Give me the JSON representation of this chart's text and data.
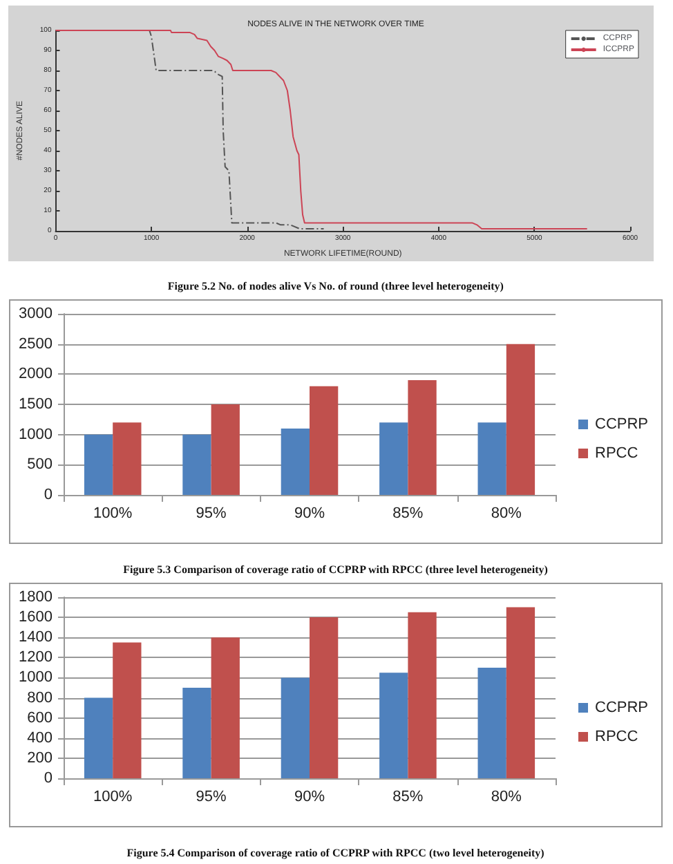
{
  "chart_data": [
    {
      "type": "line",
      "title": "NODES ALIVE IN THE NETWORK OVER TIME",
      "xlabel": "NETWORK LIFETIME(ROUND)",
      "ylabel": "#NODES ALIVE",
      "annotations": [
        "Figure 5.2 No. of nodes alive Vs No. of round (three level heterogeneity)"
      ],
      "xlim": [
        0,
        6000
      ],
      "xticks": [
        0,
        1000,
        2000,
        3000,
        4000,
        5000,
        6000
      ],
      "ylim": [
        0,
        100
      ],
      "yticks": [
        0,
        10,
        20,
        30,
        40,
        50,
        60,
        70,
        80,
        90,
        100
      ],
      "grid": false,
      "legend": "top right",
      "marker": "none",
      "series": [
        {
          "name": "CCPRP",
          "color": "#555555",
          "line_style": "dashed",
          "x": [
            0,
            980,
            1000,
            1050,
            1650,
            1700,
            1740,
            1750,
            1770,
            1810,
            1840,
            2300,
            2350,
            2450,
            2550,
            2800
          ],
          "values": [
            100,
            100,
            97,
            80,
            80,
            78,
            77,
            50,
            32,
            30,
            4,
            4,
            3,
            3,
            1,
            1
          ]
        },
        {
          "name": "ICCPRP",
          "color": "#cc4455",
          "line_style": "solid",
          "x": [
            0,
            1200,
            1210,
            1400,
            1450,
            1480,
            1580,
            1620,
            1660,
            1700,
            1750,
            1790,
            1830,
            1850,
            2250,
            2300,
            2340,
            2380,
            2420,
            2450,
            2480,
            2520,
            2540,
            2560,
            2580,
            2600,
            4350,
            4400,
            4450,
            5550
          ],
          "values": [
            100,
            100,
            99,
            99,
            98,
            96,
            95,
            92,
            90,
            87,
            86,
            85,
            83,
            80,
            80,
            79,
            77,
            75,
            70,
            60,
            47,
            40,
            38,
            20,
            8,
            4,
            4,
            3,
            1,
            1
          ]
        }
      ]
    },
    {
      "type": "bar",
      "annotations": [
        "Figure 5.3 Comparison of coverage ratio of CCPRP with RPCC (three level heterogeneity)"
      ],
      "categories": [
        "100%",
        "95%",
        "90%",
        "85%",
        "80%"
      ],
      "ylim": [
        0,
        3000
      ],
      "yticks": [
        0,
        500,
        1000,
        1500,
        2000,
        2500,
        3000
      ],
      "grid": "y",
      "legend": "right",
      "series": [
        {
          "name": "CCPRP",
          "color": "#4f81bd",
          "values": [
            1000,
            1000,
            1100,
            1200,
            1200
          ]
        },
        {
          "name": "RPCC",
          "color": "#c0504d",
          "values": [
            1200,
            1500,
            1800,
            1900,
            2500
          ]
        }
      ]
    },
    {
      "type": "bar",
      "annotations": [
        "Figure 5.4 Comparison of coverage ratio of CCPRP with RPCC (two level heterogeneity)"
      ],
      "categories": [
        "100%",
        "95%",
        "90%",
        "85%",
        "80%"
      ],
      "ylim": [
        0,
        1800
      ],
      "yticks": [
        0,
        200,
        400,
        600,
        800,
        1000,
        1200,
        1400,
        1600,
        1800
      ],
      "grid": "y",
      "legend": "right",
      "series": [
        {
          "name": "CCPRP",
          "color": "#4f81bd",
          "values": [
            800,
            900,
            1000,
            1050,
            1100
          ]
        },
        {
          "name": "RPCC",
          "color": "#c0504d",
          "values": [
            1350,
            1400,
            1600,
            1650,
            1700
          ]
        }
      ]
    }
  ]
}
